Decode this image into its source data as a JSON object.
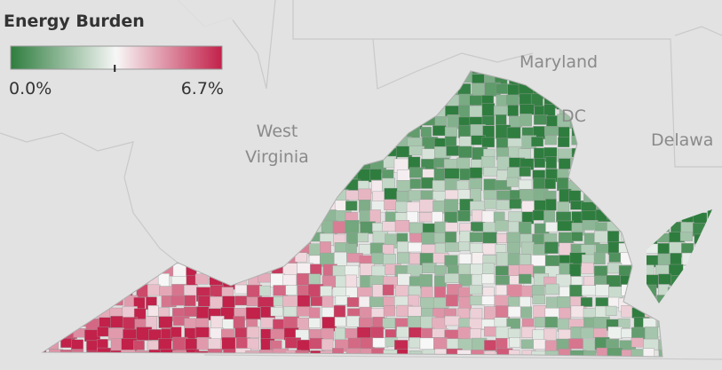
{
  "legend": {
    "title": "Energy Burden",
    "min": {
      "value": 0.0,
      "label": "0.0%"
    },
    "max": {
      "value": 6.7,
      "label": "6.7%"
    },
    "midpoint": 3.3,
    "colors": [
      "#2e7d3e",
      "#f7f7f7",
      "#c2214a"
    ]
  },
  "map_labels": {
    "maryland": "Maryland",
    "west_virginia": [
      "West",
      "Virginia"
    ],
    "dc": "DC",
    "delaware": "Delawa"
  }
}
